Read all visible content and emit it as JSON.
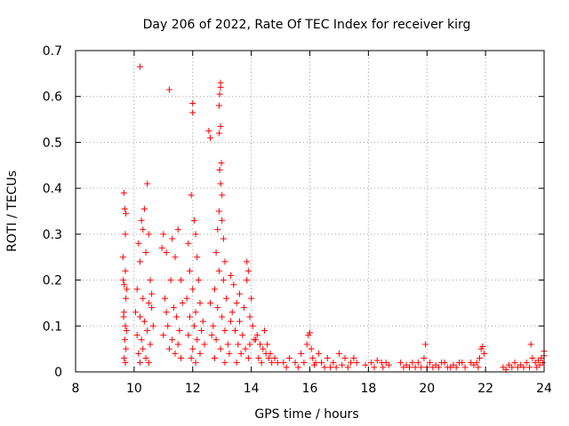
{
  "chart_data": {
    "type": "scatter",
    "title": "Day 206 of 2022, Rate Of TEC Index for receiver kirg",
    "xlabel": "GPS time / hours",
    "ylabel": "ROTI / TECUs",
    "xlim": [
      8,
      24
    ],
    "ylim": [
      0,
      0.7
    ],
    "xticks": [
      8,
      10,
      12,
      14,
      16,
      18,
      20,
      22,
      24
    ],
    "yticks": [
      0,
      0.1,
      0.2,
      0.3,
      0.4,
      0.5,
      0.6,
      0.7
    ],
    "xtick_labels": [
      "8",
      "10",
      "12",
      "14",
      "16",
      "18",
      "20",
      "22",
      "24"
    ],
    "ytick_labels": [
      "0",
      "0.1",
      "0.2",
      "0.3",
      "0.4",
      "0.5",
      "0.6",
      "0.7"
    ],
    "grid": true,
    "marker": "+",
    "color": "#ff0000",
    "series": [
      {
        "name": "ROTI",
        "points": [
          [
            9.65,
            0.39
          ],
          [
            9.68,
            0.355
          ],
          [
            9.72,
            0.345
          ],
          [
            9.7,
            0.3
          ],
          [
            9.62,
            0.25
          ],
          [
            9.7,
            0.22
          ],
          [
            9.66,
            0.19
          ],
          [
            9.72,
            0.16
          ],
          [
            9.65,
            0.13
          ],
          [
            9.7,
            0.1
          ],
          [
            9.68,
            0.07
          ],
          [
            9.72,
            0.05
          ],
          [
            9.66,
            0.03
          ],
          [
            9.7,
            0.02
          ],
          [
            9.64,
            0.12
          ],
          [
            9.74,
            0.09
          ],
          [
            9.63,
            0.2
          ],
          [
            9.75,
            0.18
          ],
          [
            10.2,
            0.665
          ],
          [
            10.45,
            0.41
          ],
          [
            10.35,
            0.355
          ],
          [
            10.25,
            0.33
          ],
          [
            10.3,
            0.31
          ],
          [
            10.5,
            0.3
          ],
          [
            10.15,
            0.28
          ],
          [
            10.4,
            0.26
          ],
          [
            10.2,
            0.24
          ],
          [
            10.55,
            0.2
          ],
          [
            10.1,
            0.18
          ],
          [
            10.3,
            0.16
          ],
          [
            10.5,
            0.15
          ],
          [
            10.6,
            0.14
          ],
          [
            10.2,
            0.12
          ],
          [
            10.35,
            0.11
          ],
          [
            10.45,
            0.09
          ],
          [
            10.1,
            0.08
          ],
          [
            10.25,
            0.07
          ],
          [
            10.55,
            0.06
          ],
          [
            10.3,
            0.05
          ],
          [
            10.15,
            0.04
          ],
          [
            10.4,
            0.03
          ],
          [
            10.2,
            0.02
          ],
          [
            10.5,
            0.02
          ],
          [
            10.65,
            0.1
          ],
          [
            10.6,
            0.17
          ],
          [
            10.05,
            0.13
          ],
          [
            11.2,
            0.615
          ],
          [
            11.0,
            0.3
          ],
          [
            10.95,
            0.27
          ],
          [
            11.1,
            0.26
          ],
          [
            11.3,
            0.29
          ],
          [
            11.5,
            0.31
          ],
          [
            11.4,
            0.25
          ],
          [
            11.25,
            0.2
          ],
          [
            11.6,
            0.2
          ],
          [
            11.05,
            0.16
          ],
          [
            11.35,
            0.14
          ],
          [
            11.45,
            0.12
          ],
          [
            11.15,
            0.1
          ],
          [
            11.55,
            0.09
          ],
          [
            11.0,
            0.08
          ],
          [
            11.3,
            0.07
          ],
          [
            11.5,
            0.06
          ],
          [
            11.2,
            0.05
          ],
          [
            11.4,
            0.04
          ],
          [
            11.6,
            0.03
          ],
          [
            11.1,
            0.13
          ],
          [
            11.65,
            0.15
          ],
          [
            12.0,
            0.585
          ],
          [
            12.0,
            0.565
          ],
          [
            11.95,
            0.385
          ],
          [
            12.05,
            0.33
          ],
          [
            12.1,
            0.3
          ],
          [
            11.85,
            0.28
          ],
          [
            12.15,
            0.25
          ],
          [
            11.9,
            0.22
          ],
          [
            12.2,
            0.2
          ],
          [
            12.0,
            0.18
          ],
          [
            11.8,
            0.16
          ],
          [
            12.25,
            0.15
          ],
          [
            12.1,
            0.13
          ],
          [
            11.9,
            0.12
          ],
          [
            12.05,
            0.1
          ],
          [
            12.3,
            0.09
          ],
          [
            11.85,
            0.08
          ],
          [
            12.15,
            0.07
          ],
          [
            12.0,
            0.05
          ],
          [
            12.25,
            0.04
          ],
          [
            11.95,
            0.03
          ],
          [
            12.1,
            0.02
          ],
          [
            12.4,
            0.06
          ],
          [
            12.35,
            0.11
          ],
          [
            12.55,
            0.525
          ],
          [
            12.6,
            0.51
          ],
          [
            12.95,
            0.63
          ],
          [
            12.95,
            0.62
          ],
          [
            12.92,
            0.605
          ],
          [
            12.9,
            0.58
          ],
          [
            12.95,
            0.535
          ],
          [
            12.9,
            0.52
          ],
          [
            12.98,
            0.455
          ],
          [
            12.92,
            0.44
          ],
          [
            12.95,
            0.41
          ],
          [
            13.0,
            0.385
          ],
          [
            12.9,
            0.35
          ],
          [
            13.0,
            0.33
          ],
          [
            12.85,
            0.31
          ],
          [
            13.05,
            0.29
          ],
          [
            12.8,
            0.26
          ],
          [
            13.1,
            0.24
          ],
          [
            12.9,
            0.22
          ],
          [
            13.05,
            0.2
          ],
          [
            12.75,
            0.18
          ],
          [
            13.15,
            0.16
          ],
          [
            12.85,
            0.14
          ],
          [
            13.0,
            0.12
          ],
          [
            12.7,
            0.1
          ],
          [
            13.1,
            0.09
          ],
          [
            12.8,
            0.07
          ],
          [
            13.2,
            0.06
          ],
          [
            12.95,
            0.05
          ],
          [
            13.25,
            0.04
          ],
          [
            12.75,
            0.03
          ],
          [
            13.1,
            0.02
          ],
          [
            12.65,
            0.08
          ],
          [
            13.3,
            0.11
          ],
          [
            12.6,
            0.15
          ],
          [
            13.3,
            0.21
          ],
          [
            13.4,
            0.19
          ],
          [
            13.5,
            0.15
          ],
          [
            13.35,
            0.13
          ],
          [
            13.6,
            0.11
          ],
          [
            13.45,
            0.09
          ],
          [
            13.7,
            0.08
          ],
          [
            13.55,
            0.06
          ],
          [
            13.8,
            0.05
          ],
          [
            13.65,
            0.04
          ],
          [
            13.9,
            0.03
          ],
          [
            13.5,
            0.02
          ],
          [
            13.85,
            0.24
          ],
          [
            13.9,
            0.22
          ],
          [
            13.85,
            0.2
          ],
          [
            13.75,
            0.14
          ],
          [
            14.0,
            0.16
          ],
          [
            13.95,
            0.12
          ],
          [
            14.05,
            0.1
          ],
          [
            14.1,
            0.07
          ],
          [
            13.95,
            0.06
          ],
          [
            13.6,
            0.17
          ],
          [
            14.2,
            0.08
          ],
          [
            14.3,
            0.06
          ],
          [
            14.4,
            0.05
          ],
          [
            14.5,
            0.04
          ],
          [
            14.25,
            0.03
          ],
          [
            14.6,
            0.03
          ],
          [
            14.35,
            0.02
          ],
          [
            14.7,
            0.02
          ],
          [
            14.45,
            0.09
          ],
          [
            14.15,
            0.07
          ],
          [
            14.55,
            0.06
          ],
          [
            14.8,
            0.03
          ],
          [
            14.9,
            0.02
          ],
          [
            14.65,
            0.04
          ],
          [
            15.1,
            0.02
          ],
          [
            15.3,
            0.03
          ],
          [
            15.5,
            0.02
          ],
          [
            15.7,
            0.04
          ],
          [
            15.9,
            0.06
          ],
          [
            16.0,
            0.085
          ],
          [
            15.95,
            0.08
          ],
          [
            16.05,
            0.05
          ],
          [
            16.1,
            0.03
          ],
          [
            16.2,
            0.02
          ],
          [
            16.3,
            0.04
          ],
          [
            15.6,
            0.01
          ],
          [
            15.8,
            0.02
          ],
          [
            16.15,
            0.015
          ],
          [
            15.2,
            0.01
          ],
          [
            16.4,
            0.02
          ],
          [
            16.6,
            0.03
          ],
          [
            16.8,
            0.02
          ],
          [
            17.0,
            0.04
          ],
          [
            17.2,
            0.03
          ],
          [
            17.4,
            0.02
          ],
          [
            17.6,
            0.02
          ],
          [
            16.5,
            0.01
          ],
          [
            16.9,
            0.01
          ],
          [
            17.1,
            0.015
          ],
          [
            17.3,
            0.01
          ],
          [
            17.5,
            0.03
          ],
          [
            16.7,
            0.01
          ],
          [
            17.9,
            0.015
          ],
          [
            18.1,
            0.02
          ],
          [
            18.3,
            0.025
          ],
          [
            18.5,
            0.01
          ],
          [
            18.6,
            0.02
          ],
          [
            18.7,
            0.015
          ],
          [
            18.2,
            0.01
          ],
          [
            18.45,
            0.02
          ],
          [
            19.1,
            0.02
          ],
          [
            19.3,
            0.015
          ],
          [
            19.5,
            0.02
          ],
          [
            19.7,
            0.02
          ],
          [
            19.9,
            0.03
          ],
          [
            19.95,
            0.06
          ],
          [
            20.1,
            0.02
          ],
          [
            20.3,
            0.015
          ],
          [
            20.5,
            0.02
          ],
          [
            20.7,
            0.01
          ],
          [
            20.9,
            0.015
          ],
          [
            21.1,
            0.02
          ],
          [
            21.3,
            0.01
          ],
          [
            19.2,
            0.01
          ],
          [
            19.4,
            0.01
          ],
          [
            19.6,
            0.01
          ],
          [
            19.8,
            0.01
          ],
          [
            20.0,
            0.01
          ],
          [
            20.2,
            0.01
          ],
          [
            20.4,
            0.01
          ],
          [
            20.6,
            0.02
          ],
          [
            20.8,
            0.01
          ],
          [
            21.0,
            0.01
          ],
          [
            21.2,
            0.02
          ],
          [
            21.5,
            0.02
          ],
          [
            21.6,
            0.015
          ],
          [
            21.7,
            0.02
          ],
          [
            21.8,
            0.03
          ],
          [
            21.85,
            0.05
          ],
          [
            21.9,
            0.055
          ],
          [
            21.95,
            0.04
          ],
          [
            21.75,
            0.01
          ],
          [
            22.6,
            0.01
          ],
          [
            22.8,
            0.015
          ],
          [
            23.0,
            0.02
          ],
          [
            23.2,
            0.015
          ],
          [
            23.4,
            0.02
          ],
          [
            23.55,
            0.06
          ],
          [
            23.6,
            0.03
          ],
          [
            23.7,
            0.02
          ],
          [
            23.8,
            0.025
          ],
          [
            23.9,
            0.03
          ],
          [
            24.0,
            0.045
          ],
          [
            24.0,
            0.035
          ],
          [
            23.95,
            0.02
          ],
          [
            22.7,
            0.005
          ],
          [
            22.9,
            0.01
          ],
          [
            23.1,
            0.01
          ],
          [
            23.3,
            0.01
          ],
          [
            23.5,
            0.01
          ],
          [
            23.75,
            0.01
          ],
          [
            23.85,
            0.015
          ]
        ]
      }
    ]
  }
}
